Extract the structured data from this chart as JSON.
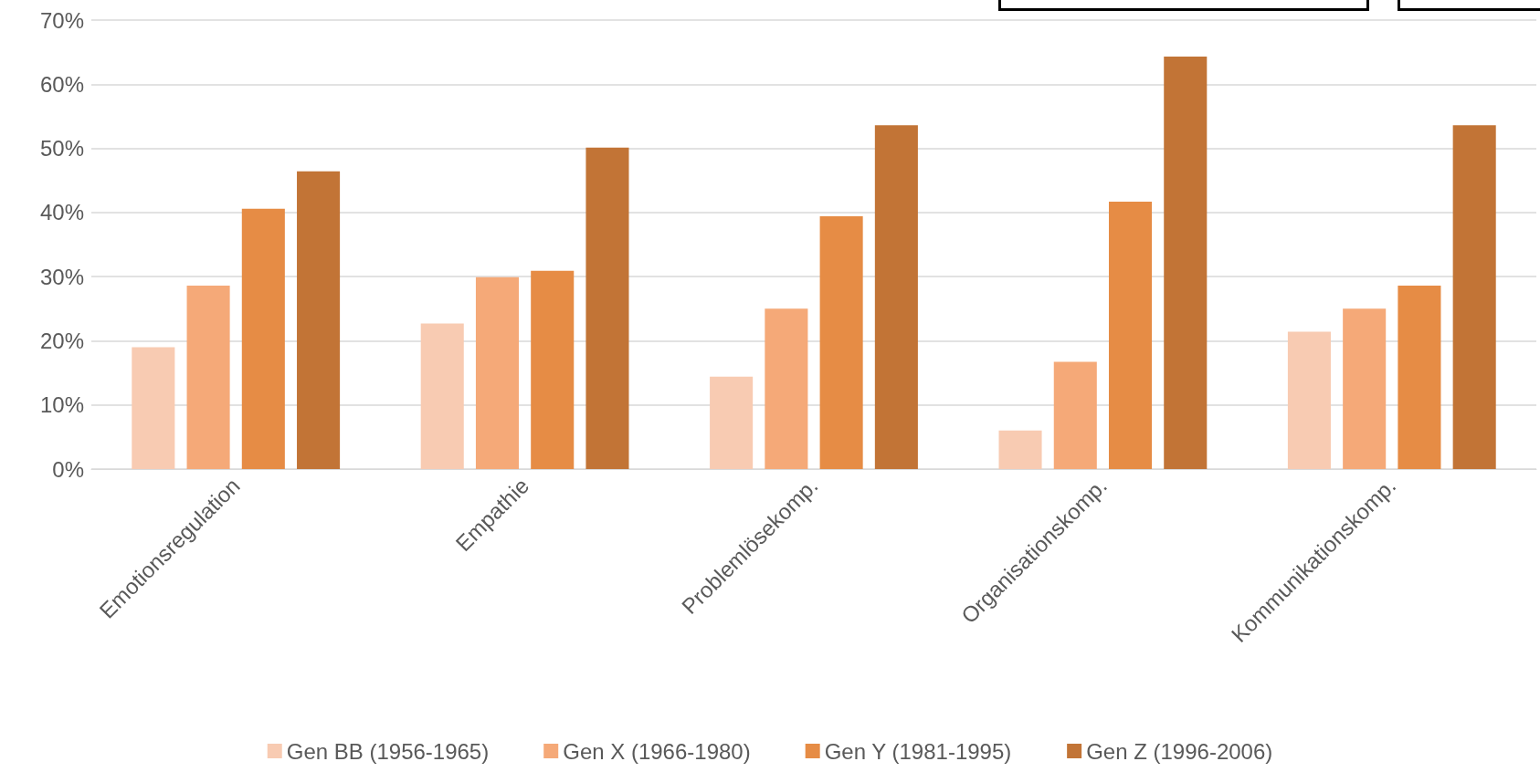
{
  "chart_data": {
    "type": "bar",
    "categories": [
      "Emotionsregulation",
      "Empathie",
      "Problemlösekomp.",
      "Organisationskomp.",
      "Kommunikationskomp."
    ],
    "series": [
      {
        "name": "Gen BB (1956-1965)",
        "color": "#f8cbb2",
        "values": [
          19,
          22.7,
          14.4,
          6,
          21.4
        ]
      },
      {
        "name": "Gen X (1966-1980)",
        "color": "#f5a978",
        "values": [
          28.6,
          29.9,
          25,
          16.7,
          25
        ]
      },
      {
        "name": "Gen Y (1981-1995)",
        "color": "#e68c45",
        "values": [
          40.6,
          30.9,
          39.4,
          41.7,
          28.6
        ]
      },
      {
        "name": "Gen Z (1996-2006)",
        "color": "#c27436",
        "values": [
          46.4,
          50.1,
          53.6,
          64.3,
          53.6
        ]
      }
    ],
    "ylim": [
      0,
      70
    ],
    "yticks": [
      {
        "value": 0,
        "label": "0%"
      },
      {
        "value": 10,
        "label": "10%"
      },
      {
        "value": 20,
        "label": "20%"
      },
      {
        "value": 30,
        "label": "30%"
      },
      {
        "value": 40,
        "label": "40%"
      },
      {
        "value": 50,
        "label": "50%"
      },
      {
        "value": 60,
        "label": "60%"
      },
      {
        "value": 70,
        "label": "70%"
      }
    ],
    "grid": "y",
    "legend": "bottom"
  }
}
